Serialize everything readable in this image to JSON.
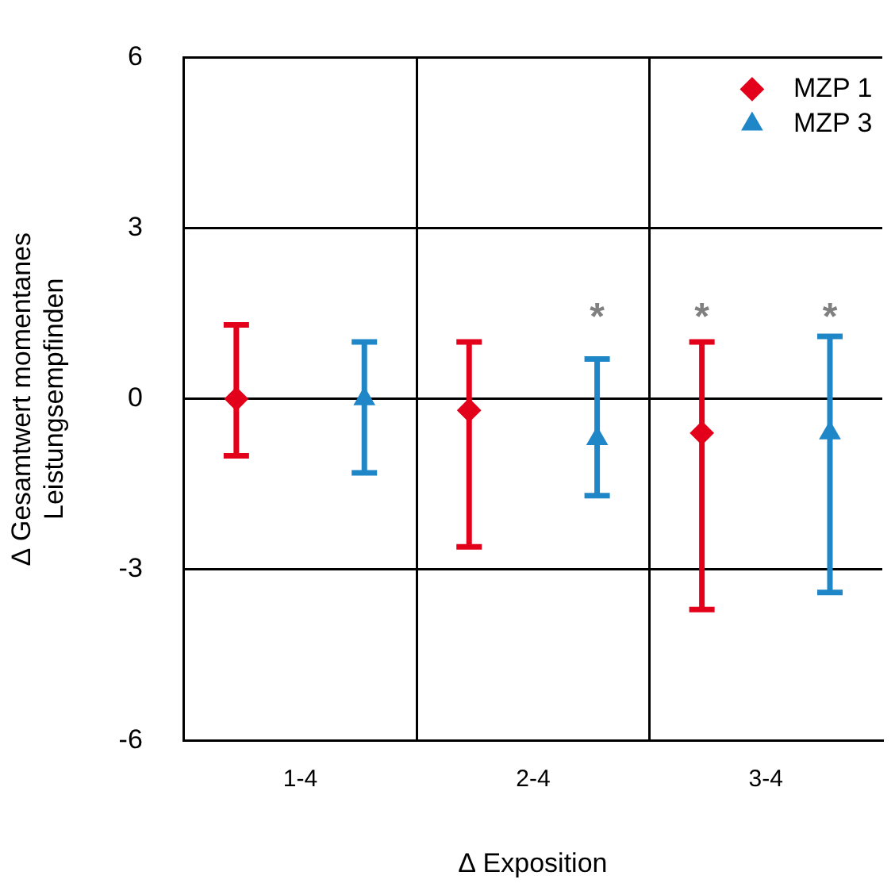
{
  "chart_data": {
    "type": "scatter",
    "categories": [
      "1-4",
      "2-4",
      "3-4"
    ],
    "series": [
      {
        "name": "MZP 1",
        "color": "#e3001b",
        "marker": "diamond",
        "values": [
          0,
          -0.2,
          -0.6
        ],
        "errors": [
          [
            -1.0,
            1.3
          ],
          [
            -2.6,
            1.0
          ],
          [
            -3.7,
            1.0
          ]
        ]
      },
      {
        "name": "MZP 3",
        "color": "#1f87c8",
        "marker": "triangle",
        "values": [
          0,
          -0.7,
          -0.6
        ],
        "errors": [
          [
            -1.3,
            1.0
          ],
          [
            -1.7,
            0.7
          ],
          [
            -3.4,
            1.1
          ]
        ]
      }
    ],
    "ylim": [
      -6,
      6
    ],
    "yticks": [
      -6,
      -3,
      0,
      3,
      6
    ],
    "grid": true,
    "legend": "top right",
    "xlabel": "∆ Exposition",
    "ylabel": "∆ Gesamtwert momentanes\nLeistungsempfinden",
    "annotations": [
      "*",
      "*",
      "*"
    ]
  }
}
